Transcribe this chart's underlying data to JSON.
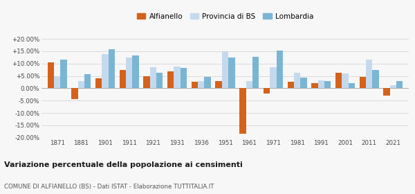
{
  "years": [
    1871,
    1881,
    1901,
    1911,
    1921,
    1931,
    1936,
    1951,
    1961,
    1971,
    1981,
    1991,
    2001,
    2011,
    2021
  ],
  "alfianello": [
    10.5,
    -4.5,
    4.0,
    7.5,
    4.8,
    6.8,
    2.5,
    2.8,
    -18.5,
    -2.0,
    2.5,
    2.0,
    6.2,
    4.5,
    -3.0
  ],
  "provincia_bs": [
    4.8,
    3.0,
    13.8,
    12.5,
    8.5,
    8.8,
    3.0,
    15.0,
    3.0,
    8.5,
    6.2,
    3.2,
    6.0,
    11.5,
    1.2
  ],
  "lombardia": [
    11.5,
    5.7,
    15.8,
    13.2,
    6.2,
    8.2,
    4.5,
    12.5,
    12.8,
    15.2,
    4.2,
    3.0,
    2.0,
    7.3,
    2.8
  ],
  "color_alfianello": "#d4621a",
  "color_provincia": "#c5d9ed",
  "color_lombardia": "#7ab5d4",
  "title": "Variazione percentuale della popolazione ai censimenti",
  "subtitle": "COMUNE DI ALFIANELLO (BS) - Dati ISTAT - Elaborazione TUTTITALIA.IT",
  "ylim": [
    -20,
    20
  ],
  "yticks": [
    -20,
    -15,
    -10,
    -5,
    0,
    5,
    10,
    15,
    20
  ],
  "background_color": "#f7f7f7"
}
